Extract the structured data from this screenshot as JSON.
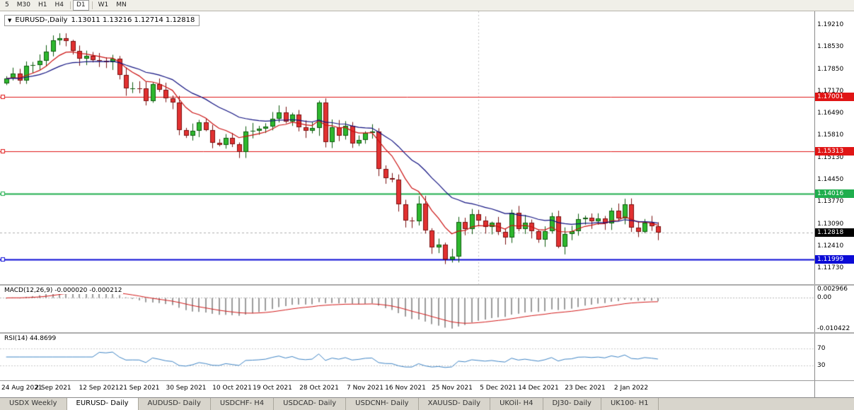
{
  "timeframe_toolbar": {
    "buttons": [
      "5",
      "M30",
      "H1",
      "H4",
      "D1",
      "W1",
      "MN"
    ],
    "active": "D1"
  },
  "chart_header": {
    "collapse_arrow": "▼",
    "title": "EURUSD-,Daily",
    "ohlc_text": "1.13011 1.13216 1.12714 1.12818"
  },
  "chart_data": {
    "type": "candlestick",
    "title": "EURUSD-,Daily",
    "symbol": "EURUSD-",
    "period": "Daily",
    "current_ohlc": {
      "open": 1.13011,
      "high": 1.13216,
      "low": 1.12714,
      "close": 1.12818
    },
    "bar_spacing": 9.4,
    "first_open": 1.174,
    "closes": [
      1.1755,
      1.177,
      1.175,
      1.1795,
      1.1797,
      1.1809,
      1.1839,
      1.1874,
      1.188,
      1.187,
      1.1841,
      1.1817,
      1.1825,
      1.1813,
      1.181,
      1.1805,
      1.1816,
      1.1766,
      1.1725,
      1.1726,
      1.1725,
      1.1687,
      1.1739,
      1.172,
      1.1695,
      1.1683,
      1.1597,
      1.158,
      1.1595,
      1.1621,
      1.1598,
      1.1558,
      1.1552,
      1.1573,
      1.1553,
      1.153,
      1.1592,
      1.1596,
      1.1601,
      1.1609,
      1.1633,
      1.1652,
      1.1624,
      1.1645,
      1.1607,
      1.1596,
      1.1603,
      1.1682,
      1.1561,
      1.1606,
      1.158,
      1.1611,
      1.1555,
      1.1567,
      1.1588,
      1.1593,
      1.1478,
      1.1449,
      1.1445,
      1.1369,
      1.132,
      1.1318,
      1.1372,
      1.1289,
      1.1237,
      1.1246,
      1.12,
      1.1209,
      1.1316,
      1.1294,
      1.1339,
      1.1319,
      1.1299,
      1.1312,
      1.1285,
      1.1268,
      1.1344,
      1.1294,
      1.1313,
      1.1286,
      1.126,
      1.1287,
      1.1332,
      1.1239,
      1.1279,
      1.1287,
      1.1324,
      1.1328,
      1.1317,
      1.1326,
      1.131,
      1.1349,
      1.1325,
      1.137,
      1.1297,
      1.1285,
      1.1313,
      1.1301,
      1.12818
    ],
    "y_axis": {
      "top_price": 1.1962,
      "bottom_price": 1.1124,
      "tick_labels": [
        "1.19210",
        "1.18530",
        "1.17850",
        "1.17170",
        "1.16490",
        "1.15810",
        "1.15130",
        "1.14450",
        "1.13770",
        "1.13090",
        "1.12410",
        "1.11730"
      ]
    },
    "x_axis": {
      "tick_labels": [
        "24 Aug 2021",
        "2 Sep 2021",
        "12 Sep 2021",
        "21 Sep 2021",
        "30 Sep 2021",
        "10 Oct 2021",
        "19 Oct 2021",
        "28 Oct 2021",
        "7 Nov 2021",
        "16 Nov 2021",
        "25 Nov 2021",
        "5 Dec 2021",
        "14 Dec 2021",
        "23 Dec 2021",
        "2 Jan 2022"
      ],
      "tick_bar_indices": [
        0,
        7,
        14,
        20,
        27,
        34,
        40,
        47,
        54,
        60,
        67,
        74,
        80,
        87,
        94
      ]
    },
    "levels": [
      {
        "price": 1.17001,
        "label": "1.17001",
        "color": "#e01515",
        "text_color": "#ffffff",
        "line_width": 1
      },
      {
        "price": 1.15313,
        "label": "1.15313",
        "color": "#e01515",
        "text_color": "#ffffff",
        "line_width": 1
      },
      {
        "price": 1.14016,
        "label": "1.14016",
        "color": "#1fae4d",
        "text_color": "#ffffff",
        "line_width": 2
      },
      {
        "price": 1.11999,
        "label": "1.11999",
        "color": "#0b0bd6",
        "text_color": "#ffffff",
        "line_width": 2
      }
    ],
    "bid": {
      "price": 1.12818,
      "label": "1.12818",
      "bg": "#000000",
      "text_color": "#ffffff"
    },
    "moving_averages": [
      {
        "type": "EMA",
        "period": 8,
        "color": "#cc1111"
      },
      {
        "type": "EMA",
        "period": 20,
        "color": "#101080"
      }
    ],
    "vline_bar_index": 71,
    "indicators": [
      {
        "name": "MACD",
        "label": "MACD(12,26,9) -0.000020 -0.000212",
        "fast": 12,
        "slow": 26,
        "signal": 9,
        "range": [
          -0.010422,
          0.002966
        ],
        "axis_ticks": [
          {
            "v": 0.002966,
            "label": "0.002966"
          },
          {
            "v": 0,
            "label": "0.00"
          },
          {
            "v": -0.010422,
            "label": "-0.010422"
          }
        ],
        "histogram_color": "#9b9b9b",
        "signal_color": "#d41a1a"
      },
      {
        "name": "RSI",
        "label": "RSI(14) 44.8699",
        "period": 14,
        "range": [
          0,
          100
        ],
        "levels": [
          70,
          30
        ],
        "axis_ticks": [
          {
            "v": 70,
            "label": "70"
          },
          {
            "v": 30,
            "label": "30"
          }
        ],
        "line_color": "#3f85c6"
      }
    ]
  },
  "bottom_tabs": {
    "items": [
      "USDX Weekly",
      "EURUSD- Daily",
      "AUDUSD- Daily",
      "USDCHF- H4",
      "USDCAD- Daily",
      "USDCNH- Daily",
      "XAUUSD- Daily",
      "UKOil- H4",
      "DJ30- Daily",
      "UK100- H1"
    ],
    "active_index": 1
  }
}
